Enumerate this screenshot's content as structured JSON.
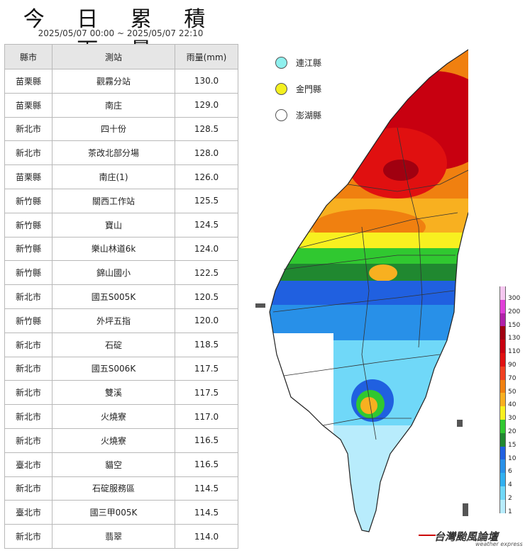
{
  "title": "今 日 累 積 雨 量",
  "subtitle": "2025/05/07 00:00 ~ 2025/05/07 22:10",
  "table": {
    "headers": [
      "縣市",
      "測站",
      "雨量(mm)"
    ],
    "rows": [
      [
        "苗栗縣",
        "觀霧分站",
        "130.0"
      ],
      [
        "苗栗縣",
        "南庄",
        "129.0"
      ],
      [
        "新北市",
        "四十份",
        "128.5"
      ],
      [
        "新北市",
        "茶改北部分場",
        "128.0"
      ],
      [
        "苗栗縣",
        "南庄(1)",
        "126.0"
      ],
      [
        "新竹縣",
        "關西工作站",
        "125.5"
      ],
      [
        "新竹縣",
        "寶山",
        "124.5"
      ],
      [
        "新竹縣",
        "樂山林道6k",
        "124.0"
      ],
      [
        "新竹縣",
        "錦山國小",
        "122.5"
      ],
      [
        "新北市",
        "國五S005K",
        "120.5"
      ],
      [
        "新竹縣",
        "外坪五指",
        "120.0"
      ],
      [
        "新北市",
        "石碇",
        "118.5"
      ],
      [
        "新北市",
        "國五S006K",
        "117.5"
      ],
      [
        "新北市",
        "雙溪",
        "117.5"
      ],
      [
        "新北市",
        "火燒寮",
        "117.0"
      ],
      [
        "新北市",
        "火燒寮",
        "116.5"
      ],
      [
        "臺北市",
        "貓空",
        "116.5"
      ],
      [
        "新北市",
        "石碇服務區",
        "114.5"
      ],
      [
        "臺北市",
        "國三甲005K",
        "114.5"
      ],
      [
        "新北市",
        "翡翠",
        "114.0"
      ]
    ]
  },
  "islands": [
    {
      "label": "連江縣",
      "color": "#8ff0ee"
    },
    {
      "label": "金門縣",
      "color": "#f4f020"
    },
    {
      "label": "澎湖縣",
      "color": "#ffffff"
    }
  ],
  "scale": [
    {
      "label": "300",
      "color": "#f5c8f0"
    },
    {
      "label": "200",
      "color": "#e040d8"
    },
    {
      "label": "150",
      "color": "#b020a8"
    },
    {
      "label": "130",
      "color": "#a00010"
    },
    {
      "label": "110",
      "color": "#c80010"
    },
    {
      "label": "90",
      "color": "#e01010"
    },
    {
      "label": "70",
      "color": "#f04020"
    },
    {
      "label": "50",
      "color": "#f08010"
    },
    {
      "label": "40",
      "color": "#f8b020"
    },
    {
      "label": "30",
      "color": "#f8f020"
    },
    {
      "label": "20",
      "color": "#30c830"
    },
    {
      "label": "15",
      "color": "#208830"
    },
    {
      "label": "10",
      "color": "#2060e0"
    },
    {
      "label": "6",
      "color": "#2890e8"
    },
    {
      "label": "4",
      "color": "#30b0f0"
    },
    {
      "label": "2",
      "color": "#70d8f8"
    },
    {
      "label": "1",
      "color": "#b8ecfc"
    }
  ],
  "logo": {
    "main": "台灣颱風論壇",
    "sub": "weather express"
  }
}
